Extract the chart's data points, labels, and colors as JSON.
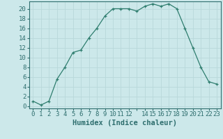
{
  "x": [
    0,
    1,
    2,
    3,
    4,
    5,
    6,
    7,
    8,
    9,
    10,
    11,
    12,
    13,
    14,
    15,
    16,
    17,
    18,
    19,
    20,
    21,
    22,
    23
  ],
  "y": [
    1,
    0.2,
    1,
    5.5,
    8,
    11,
    11.5,
    14,
    16,
    18.5,
    20,
    20,
    20,
    19.5,
    20.5,
    21,
    20.5,
    21,
    20,
    16,
    12,
    8,
    5,
    4.5
  ],
  "line_color": "#2e7d6e",
  "marker": "+",
  "marker_size": 3,
  "bg_color": "#cce8ea",
  "grid_color": "#b8d8da",
  "xlabel": "Humidex (Indice chaleur)",
  "xlim": [
    -0.5,
    23.5
  ],
  "ylim": [
    -0.5,
    21.5
  ],
  "yticks": [
    0,
    2,
    4,
    6,
    8,
    10,
    12,
    14,
    16,
    18,
    20
  ],
  "xticks": [
    0,
    1,
    2,
    3,
    4,
    5,
    6,
    7,
    8,
    9,
    10,
    11,
    12,
    13,
    14,
    15,
    16,
    17,
    18,
    19,
    20,
    21,
    22,
    23
  ],
  "xtick_labels": [
    "0",
    "1",
    "2",
    "3",
    "4",
    "5",
    "6",
    "7",
    "8",
    "9",
    "10",
    "11",
    "12",
    "",
    "14",
    "15",
    "16",
    "17",
    "18",
    "19",
    "20",
    "21",
    "22",
    "23"
  ],
  "tick_color": "#2e6e6e",
  "spine_color": "#2e6e6e",
  "xlabel_fontsize": 7.5,
  "tick_fontsize": 6.5
}
